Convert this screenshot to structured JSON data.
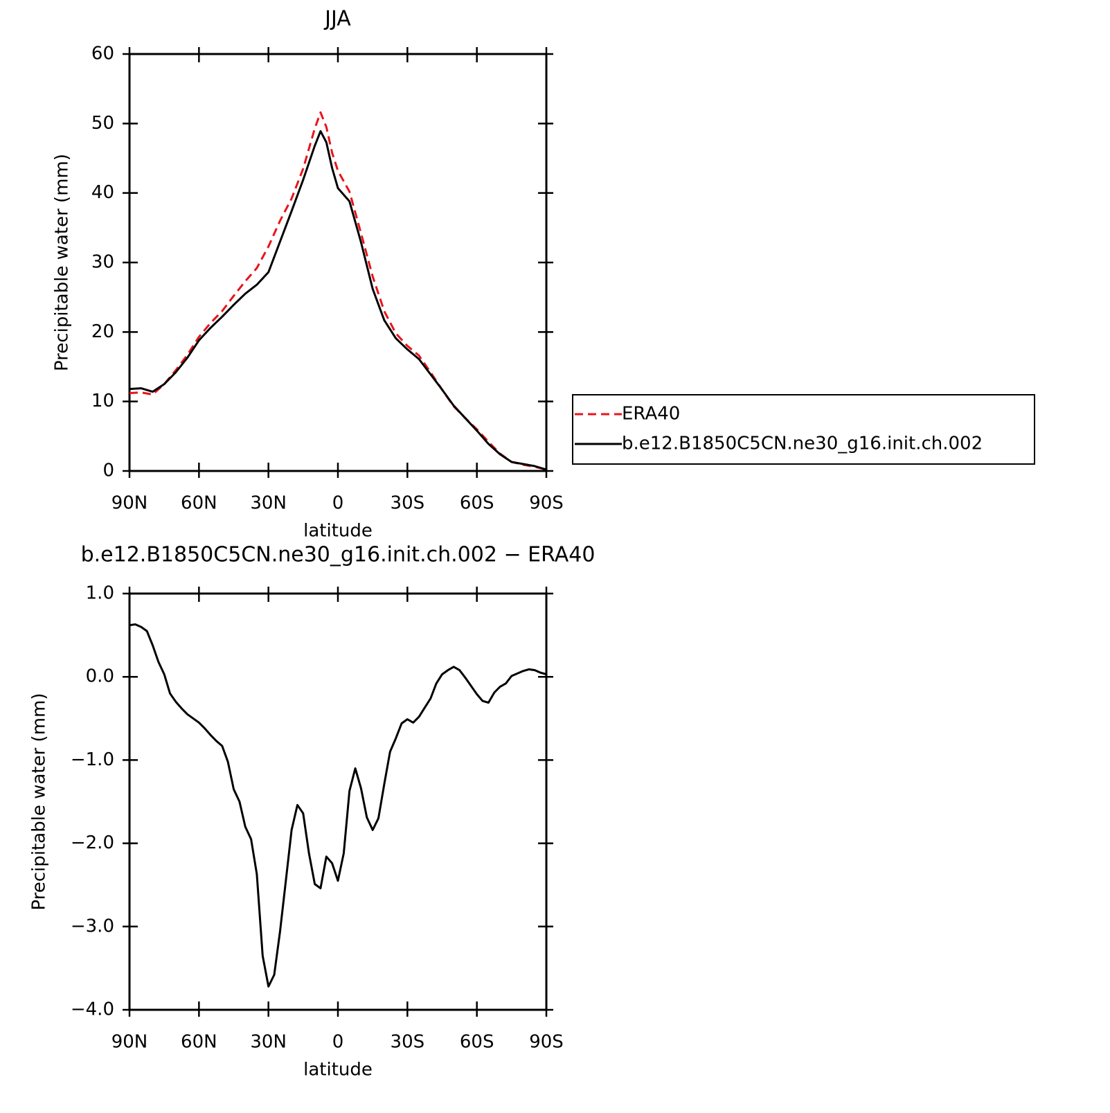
{
  "chart_data": [
    {
      "type": "line",
      "title": "JJA",
      "xlabel": "latitude",
      "ylabel": "Precipitable water (mm)",
      "x": [
        90,
        85,
        80,
        75,
        70,
        65,
        60,
        55,
        50,
        45,
        40,
        35,
        30,
        25,
        20,
        15,
        10,
        7.5,
        5,
        2.5,
        0,
        -5,
        -10,
        -15,
        -20,
        -25,
        -30,
        -35,
        -40,
        -45,
        -50,
        -55,
        -60,
        -65,
        -70,
        -75,
        -80,
        -85,
        -90
      ],
      "series": [
        {
          "name": "ERA40",
          "color": "#e8141a",
          "linestyle": "dashed",
          "values": [
            11.2,
            11.3,
            11.0,
            12.5,
            14.5,
            16.7,
            19.3,
            21.3,
            23.0,
            25.2,
            27.3,
            29.2,
            32.3,
            36.0,
            39.2,
            43.5,
            49.3,
            51.6,
            49.5,
            45.8,
            43.2,
            40.2,
            34.2,
            28.0,
            23.0,
            19.8,
            18.0,
            16.6,
            14.2,
            11.7,
            9.3,
            7.6,
            6.0,
            4.2,
            2.5,
            1.3,
            0.9,
            0.6,
            0.2
          ]
        },
        {
          "name": "b.e12.B1850C5CN.ne30_g16.init.ch.002",
          "color": "#000000",
          "linestyle": "solid",
          "values": [
            11.8,
            11.9,
            11.4,
            12.5,
            14.2,
            16.3,
            18.8,
            20.6,
            22.2,
            23.9,
            25.5,
            26.8,
            28.6,
            33.0,
            37.4,
            41.9,
            46.8,
            48.9,
            47.3,
            43.6,
            40.7,
            38.8,
            32.9,
            26.2,
            21.7,
            19.1,
            17.5,
            16.1,
            13.9,
            11.7,
            9.4,
            7.6,
            5.8,
            3.9,
            2.4,
            1.3,
            1.0,
            0.7,
            0.2
          ]
        }
      ],
      "xlim": [
        90,
        -90
      ],
      "xticks": [
        {
          "value": 90,
          "label": "90N"
        },
        {
          "value": 60,
          "label": "60N"
        },
        {
          "value": 30,
          "label": "30N"
        },
        0,
        {
          "value": -30,
          "label": "30S"
        },
        {
          "value": -60,
          "label": "60S"
        },
        {
          "value": -90,
          "label": "90S"
        }
      ],
      "ylim": [
        0,
        60
      ],
      "yticks": [
        0,
        10,
        20,
        30,
        40,
        50,
        60
      ],
      "grid": false,
      "legend": "right"
    },
    {
      "type": "line",
      "title": "b.e12.B1850C5CN.ne30_g16.init.ch.002 − ERA40",
      "xlabel": "latitude",
      "ylabel": "Precipitable water (mm)",
      "x": [
        90,
        87.5,
        85,
        82.5,
        80,
        77.5,
        75,
        72.5,
        70,
        67.5,
        65,
        62.5,
        60,
        57.5,
        55,
        52.5,
        50,
        47.5,
        45,
        42.5,
        40,
        37.5,
        35,
        32.5,
        30,
        27.5,
        25,
        22.5,
        20,
        17.5,
        15,
        12.5,
        10,
        7.5,
        5,
        2.5,
        0,
        -2.5,
        -5,
        -7.5,
        -10,
        -12.5,
        -15,
        -17.5,
        -20,
        -22.5,
        -25,
        -27.5,
        -30,
        -32.5,
        -35,
        -37.5,
        -40,
        -42.5,
        -45,
        -47.5,
        -50,
        -52.5,
        -55,
        -57.5,
        -60,
        -62.5,
        -65,
        -67.5,
        -70,
        -72.5,
        -75,
        -77.5,
        -80,
        -82.5,
        -85,
        -87.5,
        -90
      ],
      "values": [
        0.62,
        0.63,
        0.6,
        0.55,
        0.38,
        0.18,
        0.03,
        -0.2,
        -0.3,
        -0.38,
        -0.45,
        -0.5,
        -0.55,
        -0.62,
        -0.7,
        -0.77,
        -0.83,
        -1.02,
        -1.35,
        -1.5,
        -1.8,
        -1.95,
        -2.37,
        -3.35,
        -3.72,
        -3.58,
        -3.06,
        -2.45,
        -1.84,
        -1.54,
        -1.64,
        -2.12,
        -2.49,
        -2.54,
        -2.16,
        -2.24,
        -2.45,
        -2.12,
        -1.37,
        -1.1,
        -1.34,
        -1.69,
        -1.84,
        -1.7,
        -1.29,
        -0.9,
        -0.74,
        -0.56,
        -0.51,
        -0.55,
        -0.48,
        -0.37,
        -0.26,
        -0.08,
        0.03,
        0.08,
        0.12,
        0.08,
        -0.01,
        -0.11,
        -0.21,
        -0.29,
        -0.31,
        -0.19,
        -0.12,
        -0.08,
        0.01,
        0.04,
        0.07,
        0.09,
        0.08,
        0.05,
        0.03
      ],
      "color": "#000000",
      "xlim": [
        90,
        -90
      ],
      "xticks": [
        {
          "value": 90,
          "label": "90N"
        },
        {
          "value": 60,
          "label": "60N"
        },
        {
          "value": 30,
          "label": "30N"
        },
        0,
        {
          "value": -30,
          "label": "30S"
        },
        {
          "value": -60,
          "label": "60S"
        },
        {
          "value": -90,
          "label": "90S"
        }
      ],
      "ylim": [
        -4,
        1
      ],
      "yticks": [
        {
          "value": -4,
          "label": "−4.0"
        },
        {
          "value": -3,
          "label": "−3.0"
        },
        {
          "value": -2,
          "label": "−2.0"
        },
        {
          "value": -1,
          "label": "−1.0"
        },
        {
          "value": 0,
          "label": "0.0"
        },
        {
          "value": 1,
          "label": "1.0"
        }
      ],
      "grid": false
    }
  ]
}
